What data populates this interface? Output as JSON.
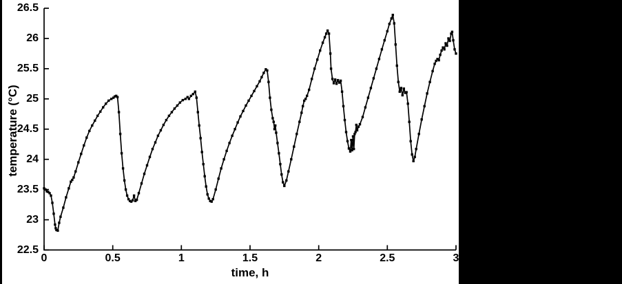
{
  "colors": {
    "background": "#ffffff",
    "letterbox": "#000000",
    "axis": "#000000",
    "line": "#000000",
    "text": "#000000"
  },
  "chart_data": {
    "type": "line",
    "title": "",
    "xlabel": "time, h",
    "ylabel": "temperature (°C)",
    "xlim": [
      0,
      3
    ],
    "ylim": [
      22.5,
      26.5
    ],
    "xticks": [
      0,
      0.5,
      1,
      1.5,
      2,
      2.5,
      3
    ],
    "yticks": [
      22.5,
      23,
      23.5,
      24,
      24.5,
      25,
      25.5,
      26,
      26.5
    ],
    "grid": false,
    "legend": "none",
    "marker": "square",
    "line_color": "#000000",
    "series": [
      {
        "name": "temperature",
        "points": [
          [
            0.0,
            23.52
          ],
          [
            0.01,
            23.5
          ],
          [
            0.02,
            23.47
          ],
          [
            0.03,
            23.46
          ],
          [
            0.04,
            23.44
          ],
          [
            0.05,
            23.4
          ],
          [
            0.06,
            23.28
          ],
          [
            0.07,
            23.1
          ],
          [
            0.08,
            22.92
          ],
          [
            0.085,
            22.86
          ],
          [
            0.09,
            22.83
          ],
          [
            0.1,
            22.82
          ],
          [
            0.11,
            22.95
          ],
          [
            0.12,
            23.05
          ],
          [
            0.14,
            23.2
          ],
          [
            0.16,
            23.37
          ],
          [
            0.18,
            23.52
          ],
          [
            0.195,
            23.63
          ],
          [
            0.205,
            23.66
          ],
          [
            0.215,
            23.7
          ],
          [
            0.23,
            23.8
          ],
          [
            0.25,
            23.95
          ],
          [
            0.27,
            24.09
          ],
          [
            0.29,
            24.23
          ],
          [
            0.31,
            24.36
          ],
          [
            0.33,
            24.47
          ],
          [
            0.35,
            24.56
          ],
          [
            0.37,
            24.64
          ],
          [
            0.39,
            24.72
          ],
          [
            0.41,
            24.79
          ],
          [
            0.43,
            24.86
          ],
          [
            0.45,
            24.92
          ],
          [
            0.47,
            24.97
          ],
          [
            0.49,
            25.0
          ],
          [
            0.505,
            25.02
          ],
          [
            0.515,
            25.04
          ],
          [
            0.525,
            25.05
          ],
          [
            0.535,
            25.03
          ],
          [
            0.545,
            24.78
          ],
          [
            0.555,
            24.42
          ],
          [
            0.565,
            24.1
          ],
          [
            0.575,
            23.85
          ],
          [
            0.585,
            23.65
          ],
          [
            0.595,
            23.5
          ],
          [
            0.605,
            23.4
          ],
          [
            0.615,
            23.34
          ],
          [
            0.625,
            23.31
          ],
          [
            0.635,
            23.3
          ],
          [
            0.645,
            23.32
          ],
          [
            0.655,
            23.4
          ],
          [
            0.665,
            23.31
          ],
          [
            0.675,
            23.33
          ],
          [
            0.69,
            23.44
          ],
          [
            0.71,
            23.6
          ],
          [
            0.73,
            23.76
          ],
          [
            0.75,
            23.9
          ],
          [
            0.77,
            24.04
          ],
          [
            0.79,
            24.17
          ],
          [
            0.81,
            24.28
          ],
          [
            0.83,
            24.39
          ],
          [
            0.85,
            24.48
          ],
          [
            0.87,
            24.57
          ],
          [
            0.89,
            24.65
          ],
          [
            0.91,
            24.72
          ],
          [
            0.93,
            24.78
          ],
          [
            0.95,
            24.84
          ],
          [
            0.97,
            24.89
          ],
          [
            0.99,
            24.94
          ],
          [
            1.01,
            24.98
          ],
          [
            1.03,
            25.0
          ],
          [
            1.045,
            25.03
          ],
          [
            1.055,
            25.0
          ],
          [
            1.07,
            25.05
          ],
          [
            1.085,
            25.08
          ],
          [
            1.1,
            25.12
          ],
          [
            1.11,
            25.02
          ],
          [
            1.12,
            24.78
          ],
          [
            1.13,
            24.56
          ],
          [
            1.14,
            24.35
          ],
          [
            1.15,
            24.12
          ],
          [
            1.16,
            23.92
          ],
          [
            1.17,
            23.72
          ],
          [
            1.18,
            23.55
          ],
          [
            1.19,
            23.42
          ],
          [
            1.2,
            23.35
          ],
          [
            1.21,
            23.31
          ],
          [
            1.22,
            23.3
          ],
          [
            1.23,
            23.34
          ],
          [
            1.25,
            23.5
          ],
          [
            1.27,
            23.68
          ],
          [
            1.29,
            23.85
          ],
          [
            1.31,
            24.0
          ],
          [
            1.33,
            24.14
          ],
          [
            1.35,
            24.27
          ],
          [
            1.37,
            24.39
          ],
          [
            1.39,
            24.5
          ],
          [
            1.41,
            24.61
          ],
          [
            1.43,
            24.71
          ],
          [
            1.45,
            24.8
          ],
          [
            1.47,
            24.89
          ],
          [
            1.49,
            24.97
          ],
          [
            1.51,
            25.05
          ],
          [
            1.53,
            25.13
          ],
          [
            1.55,
            25.21
          ],
          [
            1.57,
            25.29
          ],
          [
            1.585,
            25.36
          ],
          [
            1.6,
            25.43
          ],
          [
            1.615,
            25.49
          ],
          [
            1.625,
            25.47
          ],
          [
            1.635,
            25.28
          ],
          [
            1.645,
            25.02
          ],
          [
            1.655,
            24.82
          ],
          [
            1.665,
            24.68
          ],
          [
            1.672,
            24.62
          ],
          [
            1.678,
            24.5
          ],
          [
            1.684,
            24.56
          ],
          [
            1.69,
            24.44
          ],
          [
            1.7,
            24.27
          ],
          [
            1.71,
            24.1
          ],
          [
            1.72,
            23.92
          ],
          [
            1.73,
            23.75
          ],
          [
            1.74,
            23.62
          ],
          [
            1.75,
            23.56
          ],
          [
            1.765,
            23.65
          ],
          [
            1.78,
            23.8
          ],
          [
            1.8,
            24.0
          ],
          [
            1.82,
            24.21
          ],
          [
            1.84,
            24.42
          ],
          [
            1.86,
            24.62
          ],
          [
            1.875,
            24.77
          ],
          [
            1.885,
            24.88
          ],
          [
            1.895,
            24.97
          ],
          [
            1.905,
            25.0
          ],
          [
            1.915,
            25.05
          ],
          [
            1.93,
            25.15
          ],
          [
            1.95,
            25.33
          ],
          [
            1.97,
            25.5
          ],
          [
            1.99,
            25.65
          ],
          [
            2.01,
            25.8
          ],
          [
            2.03,
            25.93
          ],
          [
            2.045,
            26.02
          ],
          [
            2.055,
            26.08
          ],
          [
            2.065,
            26.13
          ],
          [
            2.075,
            26.08
          ],
          [
            2.085,
            25.75
          ],
          [
            2.09,
            25.5
          ],
          [
            2.1,
            25.33
          ],
          [
            2.11,
            25.26
          ],
          [
            2.12,
            25.32
          ],
          [
            2.13,
            25.25
          ],
          [
            2.14,
            25.31
          ],
          [
            2.15,
            25.27
          ],
          [
            2.16,
            25.3
          ],
          [
            2.17,
            25.12
          ],
          [
            2.18,
            24.88
          ],
          [
            2.19,
            24.65
          ],
          [
            2.2,
            24.45
          ],
          [
            2.21,
            24.3
          ],
          [
            2.22,
            24.18
          ],
          [
            2.23,
            24.13
          ],
          [
            2.237,
            24.32
          ],
          [
            2.243,
            24.15
          ],
          [
            2.25,
            24.38
          ],
          [
            2.256,
            24.17
          ],
          [
            2.262,
            24.42
          ],
          [
            2.268,
            24.45
          ],
          [
            2.274,
            24.57
          ],
          [
            2.28,
            24.48
          ],
          [
            2.29,
            24.54
          ],
          [
            2.3,
            24.58
          ],
          [
            2.32,
            24.7
          ],
          [
            2.34,
            24.86
          ],
          [
            2.36,
            25.02
          ],
          [
            2.38,
            25.18
          ],
          [
            2.4,
            25.34
          ],
          [
            2.42,
            25.5
          ],
          [
            2.44,
            25.66
          ],
          [
            2.46,
            25.82
          ],
          [
            2.48,
            25.97
          ],
          [
            2.5,
            26.12
          ],
          [
            2.515,
            26.24
          ],
          [
            2.53,
            26.33
          ],
          [
            2.54,
            26.39
          ],
          [
            2.55,
            26.25
          ],
          [
            2.56,
            25.9
          ],
          [
            2.57,
            25.55
          ],
          [
            2.58,
            25.28
          ],
          [
            2.59,
            25.12
          ],
          [
            2.6,
            25.18
          ],
          [
            2.61,
            25.06
          ],
          [
            2.62,
            25.17
          ],
          [
            2.63,
            25.1
          ],
          [
            2.64,
            25.11
          ],
          [
            2.65,
            24.92
          ],
          [
            2.66,
            24.62
          ],
          [
            2.67,
            24.3
          ],
          [
            2.68,
            24.08
          ],
          [
            2.69,
            23.97
          ],
          [
            2.7,
            24.04
          ],
          [
            2.71,
            24.17
          ],
          [
            2.73,
            24.42
          ],
          [
            2.75,
            24.66
          ],
          [
            2.77,
            24.88
          ],
          [
            2.79,
            25.09
          ],
          [
            2.81,
            25.28
          ],
          [
            2.83,
            25.46
          ],
          [
            2.845,
            25.58
          ],
          [
            2.855,
            25.63
          ],
          [
            2.865,
            25.66
          ],
          [
            2.875,
            25.64
          ],
          [
            2.885,
            25.73
          ],
          [
            2.895,
            25.8
          ],
          [
            2.905,
            25.85
          ],
          [
            2.915,
            25.82
          ],
          [
            2.925,
            25.92
          ],
          [
            2.935,
            25.88
          ],
          [
            2.945,
            26.0
          ],
          [
            2.955,
            25.96
          ],
          [
            2.965,
            26.08
          ],
          [
            2.972,
            26.11
          ],
          [
            2.98,
            25.97
          ],
          [
            2.99,
            25.82
          ],
          [
            3.0,
            25.75
          ]
        ]
      }
    ]
  }
}
